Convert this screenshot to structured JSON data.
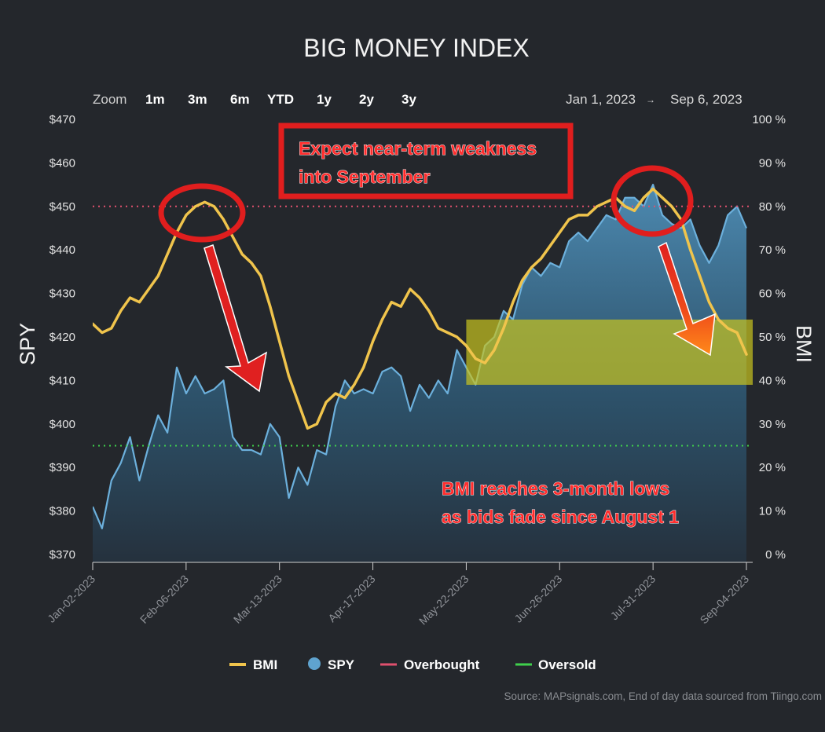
{
  "chart_data": {
    "type": "line",
    "title": "BIG MONEY INDEX",
    "ylabel_left": "SPY",
    "ylabel_right": "BMI",
    "zoom": {
      "label": "Zoom",
      "options": [
        "1m",
        "3m",
        "6m",
        "YTD",
        "1y",
        "2y",
        "3y"
      ]
    },
    "date_range": {
      "from": "Jan 1, 2023",
      "arrow": "→",
      "to": "Sep 6, 2023"
    },
    "x_ticks": [
      "Jan-02-2023",
      "Feb-06-2023",
      "Mar-13-2023",
      "Apr-17-2023",
      "May-22-2023",
      "Jun-26-2023",
      "Jul-31-2023",
      "Sep-04-2023"
    ],
    "y_left_ticks": [
      "$470",
      "$460",
      "$450",
      "$440",
      "$430",
      "$420",
      "$410",
      "$400",
      "$390",
      "$380",
      "$370"
    ],
    "y_right_ticks": [
      "100 %",
      "90 %",
      "80 %",
      "70 %",
      "60 %",
      "50 %",
      "40 %",
      "30 %",
      "20 %",
      "10 %",
      "0 %"
    ],
    "ylim_left": [
      370,
      470
    ],
    "ylim_right": [
      0,
      100
    ],
    "xlim_weeks": [
      0,
      35
    ],
    "overbought_level": 80,
    "oversold_level": 25,
    "highlight_band_pct": [
      39,
      54
    ],
    "series": [
      {
        "name": "BMI",
        "color": "#f0c44c",
        "x_weeks": [
          0,
          0.5,
          1,
          1.5,
          2,
          2.5,
          3,
          3.5,
          4,
          4.5,
          5,
          5.5,
          6,
          6.5,
          7,
          7.5,
          8,
          8.5,
          9,
          9.5,
          10,
          10.5,
          11,
          11.5,
          12,
          12.5,
          13,
          13.5,
          14,
          14.5,
          15,
          15.5,
          16,
          16.5,
          17,
          17.5,
          18,
          18.5,
          19,
          19.5,
          20,
          20.5,
          21,
          21.5,
          22,
          22.5,
          23,
          23.5,
          24,
          24.5,
          25,
          25.5,
          26,
          26.5,
          27,
          27.5,
          28,
          28.5,
          29,
          29.5,
          30,
          30.5,
          31,
          31.5,
          32,
          32.5,
          33,
          33.5,
          34,
          34.5,
          35
        ],
        "values": [
          53,
          51,
          52,
          56,
          59,
          58,
          61,
          64,
          69,
          74,
          78,
          80,
          81,
          80,
          77,
          73,
          69,
          67,
          64,
          57,
          49,
          41,
          35,
          29,
          30,
          35,
          37,
          36,
          39,
          43,
          49,
          54,
          58,
          57,
          61,
          59,
          56,
          52,
          51,
          50,
          48,
          45,
          44,
          47,
          52,
          58,
          63,
          66,
          68,
          71,
          74,
          77,
          78,
          78,
          80,
          81,
          82,
          80,
          79,
          82,
          84,
          82,
          80,
          77,
          70,
          64,
          58,
          54,
          52,
          51,
          46
        ]
      },
      {
        "name": "SPY",
        "color": "#5fa3cf",
        "x_weeks": [
          0,
          0.5,
          1,
          1.5,
          2,
          2.5,
          3,
          3.5,
          4,
          4.5,
          5,
          5.5,
          6,
          6.5,
          7,
          7.5,
          8,
          8.5,
          9,
          9.5,
          10,
          10.5,
          11,
          11.5,
          12,
          12.5,
          13,
          13.5,
          14,
          14.5,
          15,
          15.5,
          16,
          16.5,
          17,
          17.5,
          18,
          18.5,
          19,
          19.5,
          20,
          20.5,
          21,
          21.5,
          22,
          22.5,
          23,
          23.5,
          24,
          24.5,
          25,
          25.5,
          26,
          26.5,
          27,
          27.5,
          28,
          28.5,
          29,
          29.5,
          30,
          30.5,
          31,
          31.5,
          32,
          32.5,
          33,
          33.5,
          34,
          34.5,
          35
        ],
        "values": [
          381,
          376,
          387,
          391,
          397,
          387,
          395,
          402,
          398,
          413,
          407,
          411,
          407,
          408,
          410,
          397,
          394,
          394,
          393,
          400,
          397,
          383,
          390,
          386,
          394,
          393,
          404,
          410,
          407,
          408,
          407,
          412,
          413,
          411,
          403,
          409,
          406,
          410,
          407,
          417,
          413,
          409,
          418,
          420,
          426,
          424,
          432,
          436,
          434,
          437,
          436,
          442,
          444,
          442,
          445,
          448,
          447,
          452,
          452,
          450,
          455,
          448,
          446,
          445,
          447,
          441,
          437,
          441,
          448,
          450,
          445
        ]
      }
    ],
    "legend": [
      {
        "label": "BMI",
        "color": "#f0c44c",
        "type": "line"
      },
      {
        "label": "SPY",
        "color": "#5fa3cf",
        "type": "dot"
      },
      {
        "label": "Overbought",
        "color": "#e0506e",
        "type": "line"
      },
      {
        "label": "Oversold",
        "color": "#3fd04c",
        "type": "line"
      }
    ],
    "legend_position": "bottom-center",
    "grid": false,
    "annotations": {
      "top_box": [
        "Expect near-term weakness",
        "into September"
      ],
      "bottom_text": [
        "BMI reaches 3-month lows",
        "as bids fade since August 1"
      ]
    },
    "source": "Source: MAPsignals.com, End of day data sourced from Tiingo.com"
  }
}
